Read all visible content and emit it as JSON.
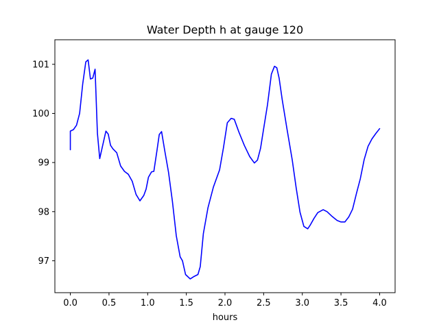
{
  "chart_data": {
    "type": "line",
    "title": "Water Depth h at gauge 120",
    "xlabel": "hours",
    "ylabel": "",
    "xlim": [
      -0.2,
      4.2
    ],
    "ylim": [
      96.35,
      101.5
    ],
    "xticks": [
      0.0,
      0.5,
      1.0,
      1.5,
      2.0,
      2.5,
      3.0,
      3.5,
      4.0
    ],
    "xtick_labels": [
      "0.0",
      "0.5",
      "1.0",
      "1.5",
      "2.0",
      "2.5",
      "3.0",
      "3.5",
      "4.0"
    ],
    "yticks": [
      97,
      98,
      99,
      100,
      101
    ],
    "ytick_labels": [
      "97",
      "98",
      "99",
      "100",
      "101"
    ],
    "grid": false,
    "colors": {
      "line": "#0000ff",
      "axes": "#000000",
      "background": "#ffffff"
    },
    "series": [
      {
        "x": [
          0.0,
          0.0,
          0.04,
          0.08,
          0.12,
          0.16,
          0.2,
          0.23,
          0.26,
          0.29,
          0.32,
          0.35,
          0.38,
          0.42,
          0.46,
          0.49,
          0.52,
          0.55,
          0.6,
          0.65,
          0.7,
          0.75,
          0.8,
          0.85,
          0.9,
          0.95,
          0.98,
          1.01,
          1.05,
          1.08,
          1.12,
          1.15,
          1.18,
          1.22,
          1.27,
          1.32,
          1.37,
          1.42,
          1.45,
          1.49,
          1.55,
          1.6,
          1.65,
          1.68,
          1.72,
          1.78,
          1.85,
          1.93,
          1.98,
          2.03,
          2.08,
          2.12,
          2.18,
          2.25,
          2.32,
          2.38,
          2.42,
          2.46,
          2.5,
          2.55,
          2.6,
          2.64,
          2.67,
          2.7,
          2.74,
          2.8,
          2.87,
          2.92,
          2.97,
          3.02,
          3.07,
          3.1,
          3.15,
          3.2,
          3.27,
          3.32,
          3.38,
          3.45,
          3.5,
          3.55,
          3.6,
          3.65,
          3.7,
          3.75,
          3.8,
          3.85,
          3.9,
          3.95,
          4.0
        ],
        "y": [
          99.26,
          99.64,
          99.67,
          99.76,
          100.0,
          100.6,
          101.05,
          101.09,
          100.7,
          100.72,
          100.9,
          99.6,
          99.08,
          99.36,
          99.64,
          99.58,
          99.35,
          99.28,
          99.2,
          98.93,
          98.82,
          98.76,
          98.62,
          98.35,
          98.22,
          98.33,
          98.46,
          98.7,
          98.81,
          98.82,
          99.24,
          99.57,
          99.63,
          99.25,
          98.8,
          98.21,
          97.51,
          97.08,
          97.0,
          96.72,
          96.63,
          96.68,
          96.72,
          96.88,
          97.55,
          98.08,
          98.5,
          98.85,
          99.3,
          99.81,
          99.9,
          99.88,
          99.62,
          99.35,
          99.12,
          98.99,
          99.05,
          99.29,
          99.69,
          100.18,
          100.8,
          100.96,
          100.93,
          100.72,
          100.28,
          99.7,
          99.05,
          98.49,
          97.99,
          97.7,
          97.65,
          97.72,
          97.86,
          97.98,
          98.04,
          98.0,
          97.91,
          97.82,
          97.79,
          97.79,
          97.89,
          98.05,
          98.37,
          98.67,
          99.06,
          99.33,
          99.48,
          99.59,
          99.69
        ]
      }
    ]
  }
}
